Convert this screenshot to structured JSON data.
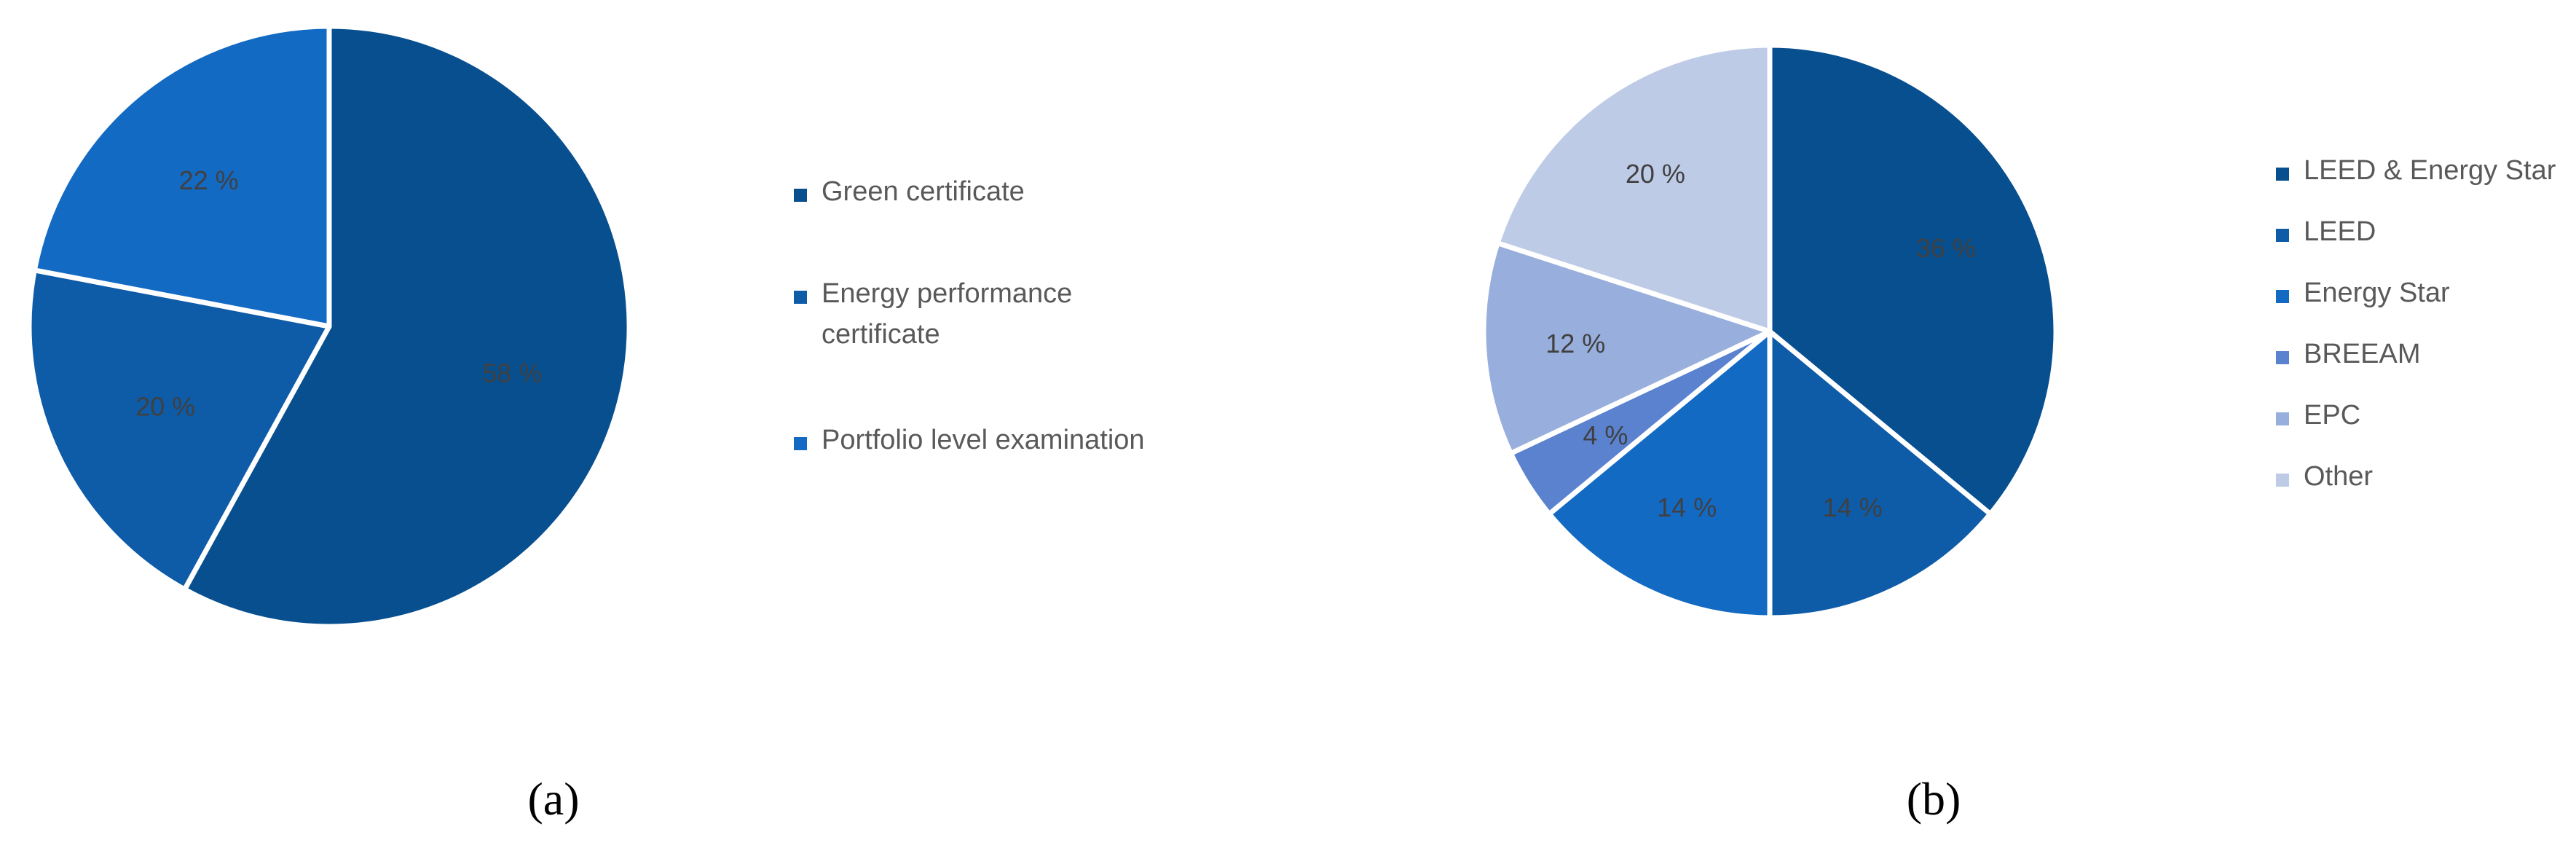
{
  "chart_data": [
    {
      "type": "pie",
      "caption": "(a)",
      "legend_position": "right",
      "slices": [
        {
          "label": "Green certificate",
          "value": 58,
          "value_label": "58 %",
          "color": "#074F8F"
        },
        {
          "label": "Energy performance certificate",
          "value": 20,
          "value_label": "20 %",
          "color": "#0E5BA8"
        },
        {
          "label": "Portfolio level examination",
          "value": 22,
          "value_label": "22 %",
          "color": "#136AC3"
        }
      ],
      "legend_lines": [
        [
          "Green certificate"
        ],
        [
          "Energy performance",
          "certificate"
        ],
        [
          "Portfolio level examination"
        ]
      ]
    },
    {
      "type": "pie",
      "caption": "(b)",
      "legend_position": "right",
      "slices": [
        {
          "label": "LEED & Energy Star",
          "value": 36,
          "value_label": "36 %",
          "color": "#074F8F"
        },
        {
          "label": "LEED",
          "value": 14,
          "value_label": "14 %",
          "color": "#0E5BA8"
        },
        {
          "label": "Energy Star",
          "value": 14,
          "value_label": "14 %",
          "color": "#136AC3"
        },
        {
          "label": "BREEAM",
          "value": 4,
          "value_label": "4 %",
          "color": "#5B82CF"
        },
        {
          "label": "EPC",
          "value": 12,
          "value_label": "12 %",
          "color": "#98AEDD"
        },
        {
          "label": "Other",
          "value": 20,
          "value_label": "20 %",
          "color": "#BDCBE6"
        }
      ],
      "legend_lines": [
        [
          "LEED & Energy Star"
        ],
        [
          "LEED"
        ],
        [
          "Energy Star"
        ],
        [
          "BREEAM"
        ],
        [
          "EPC"
        ],
        [
          "Other"
        ]
      ]
    }
  ]
}
